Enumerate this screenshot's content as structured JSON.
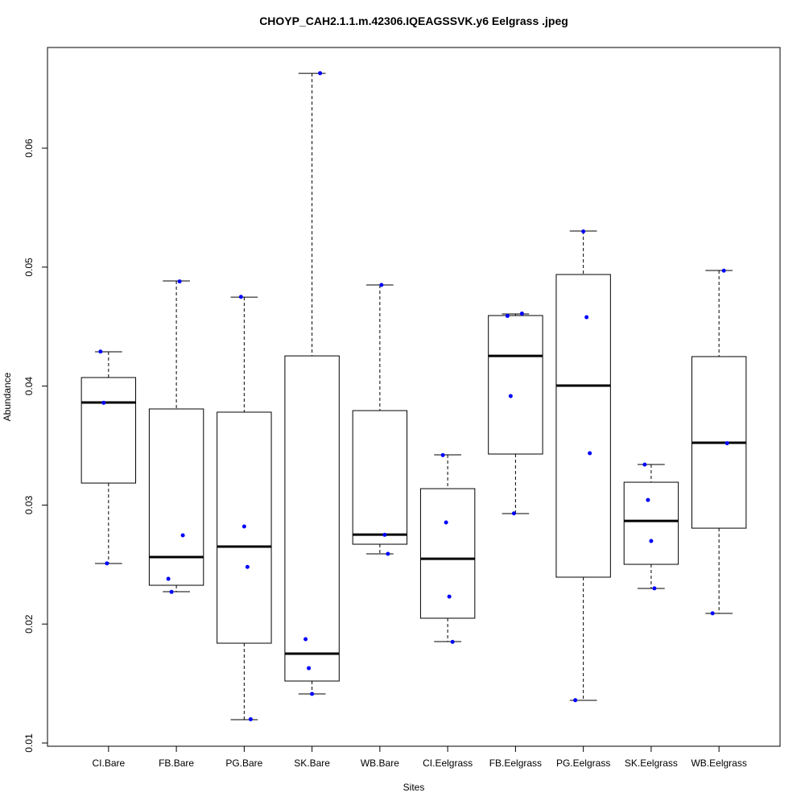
{
  "chart_data": {
    "type": "box",
    "title": "CHOYP_CAH2.1.1.m.42306.IQEAGSSVK.y6 Eelgrass .jpeg",
    "x_label": "Sites",
    "y_label": "Abundance",
    "categories": [
      "CI.Bare",
      "FB.Bare",
      "PG.Bare",
      "SK.Bare",
      "WB.Bare",
      "CI.Eelgrass",
      "FB.Eelgrass",
      "PG.Eelgrass",
      "SK.Eelgrass",
      "WB.Eelgrass"
    ],
    "boxes": [
      {
        "low": 0.02509,
        "q1": 0.03185,
        "median": 0.03862,
        "q3": 0.04072,
        "high": 0.04288,
        "points": [
          0.0429,
          0.0386,
          0.0251
        ]
      },
      {
        "low": 0.02272,
        "q1": 0.02326,
        "median": 0.02563,
        "q3": 0.03808,
        "high": 0.04884,
        "points": [
          0.0488,
          0.02746,
          0.0238,
          0.0227
        ]
      },
      {
        "low": 0.01196,
        "q1": 0.01839,
        "median": 0.02651,
        "q3": 0.03781,
        "high": 0.04748,
        "points": [
          0.0475,
          0.0282,
          0.0248,
          0.012
        ]
      },
      {
        "low": 0.01413,
        "q1": 0.01521,
        "median": 0.01751,
        "q3": 0.04254,
        "high": 0.06629,
        "points": [
          0.0663,
          0.01873,
          0.01629,
          0.01413
        ]
      },
      {
        "low": 0.0259,
        "q1": 0.02671,
        "median": 0.02752,
        "q3": 0.03794,
        "high": 0.0485,
        "points": [
          0.0485,
          0.0275,
          0.0259
        ]
      },
      {
        "low": 0.01853,
        "q1": 0.02049,
        "median": 0.02549,
        "q3": 0.03138,
        "high": 0.03422,
        "points": [
          0.0342,
          0.02854,
          0.02231,
          0.0185
        ]
      },
      {
        "low": 0.02928,
        "q1": 0.03429,
        "median": 0.04254,
        "q3": 0.04593,
        "high": 0.04606,
        "points": [
          0.0461,
          0.0459,
          0.03916,
          0.0293
        ]
      },
      {
        "low": 0.01359,
        "q1": 0.02394,
        "median": 0.04004,
        "q3": 0.04938,
        "high": 0.05303,
        "points": [
          0.053,
          0.04579,
          0.03436,
          0.0136
        ]
      },
      {
        "low": 0.02299,
        "q1": 0.02502,
        "median": 0.02867,
        "q3": 0.03192,
        "high": 0.03341,
        "points": [
          0.0334,
          0.03043,
          0.02698,
          0.023
        ]
      },
      {
        "low": 0.02089,
        "q1": 0.02806,
        "median": 0.03524,
        "q3": 0.04248,
        "high": 0.04972,
        "points": [
          0.0497,
          0.0352,
          0.0209
        ]
      }
    ],
    "point_color": "#0000ff",
    "ylim": [
      0.00973,
      0.06846
    ],
    "yticks": [
      0.01,
      0.02,
      0.03,
      0.04,
      0.05,
      0.06
    ]
  }
}
